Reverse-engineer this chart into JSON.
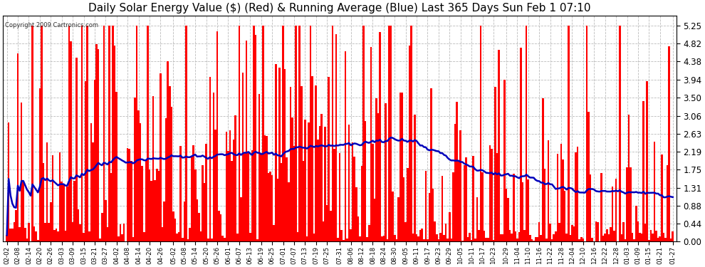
{
  "title": "Daily Solar Energy Value ($) (Red) & Running Average (Blue) Last 365 Days Sun Feb 1 07:10",
  "copyright": "Copyright 2009 Cartronics.com",
  "bar_color": "#ff0000",
  "avg_color": "#0000bb",
  "background_color": "#ffffff",
  "plot_bg_color": "#ffffff",
  "grid_color": "#bbbbbb",
  "title_fontsize": 11,
  "yticks": [
    0.0,
    0.44,
    0.88,
    1.31,
    1.75,
    2.19,
    2.63,
    3.06,
    3.5,
    3.94,
    4.38,
    4.82,
    5.25
  ],
  "ylim": [
    0.0,
    5.5
  ],
  "num_days": 365,
  "seed": 12345,
  "x_labels": [
    "02-02",
    "02-08",
    "02-14",
    "02-20",
    "02-26",
    "03-03",
    "03-09",
    "03-15",
    "03-21",
    "03-27",
    "04-02",
    "04-08",
    "04-14",
    "04-20",
    "04-26",
    "05-02",
    "05-08",
    "05-14",
    "05-20",
    "05-26",
    "06-01",
    "06-07",
    "06-13",
    "06-19",
    "06-25",
    "07-01",
    "07-07",
    "07-13",
    "07-19",
    "07-25",
    "07-31",
    "08-06",
    "08-12",
    "08-18",
    "08-24",
    "08-30",
    "09-05",
    "09-11",
    "09-17",
    "09-23",
    "09-29",
    "10-05",
    "10-11",
    "10-17",
    "10-23",
    "10-29",
    "11-04",
    "11-10",
    "11-16",
    "11-22",
    "11-28",
    "12-04",
    "12-10",
    "12-16",
    "12-22",
    "12-28",
    "01-03",
    "01-09",
    "01-15",
    "01-21",
    "01-27"
  ]
}
